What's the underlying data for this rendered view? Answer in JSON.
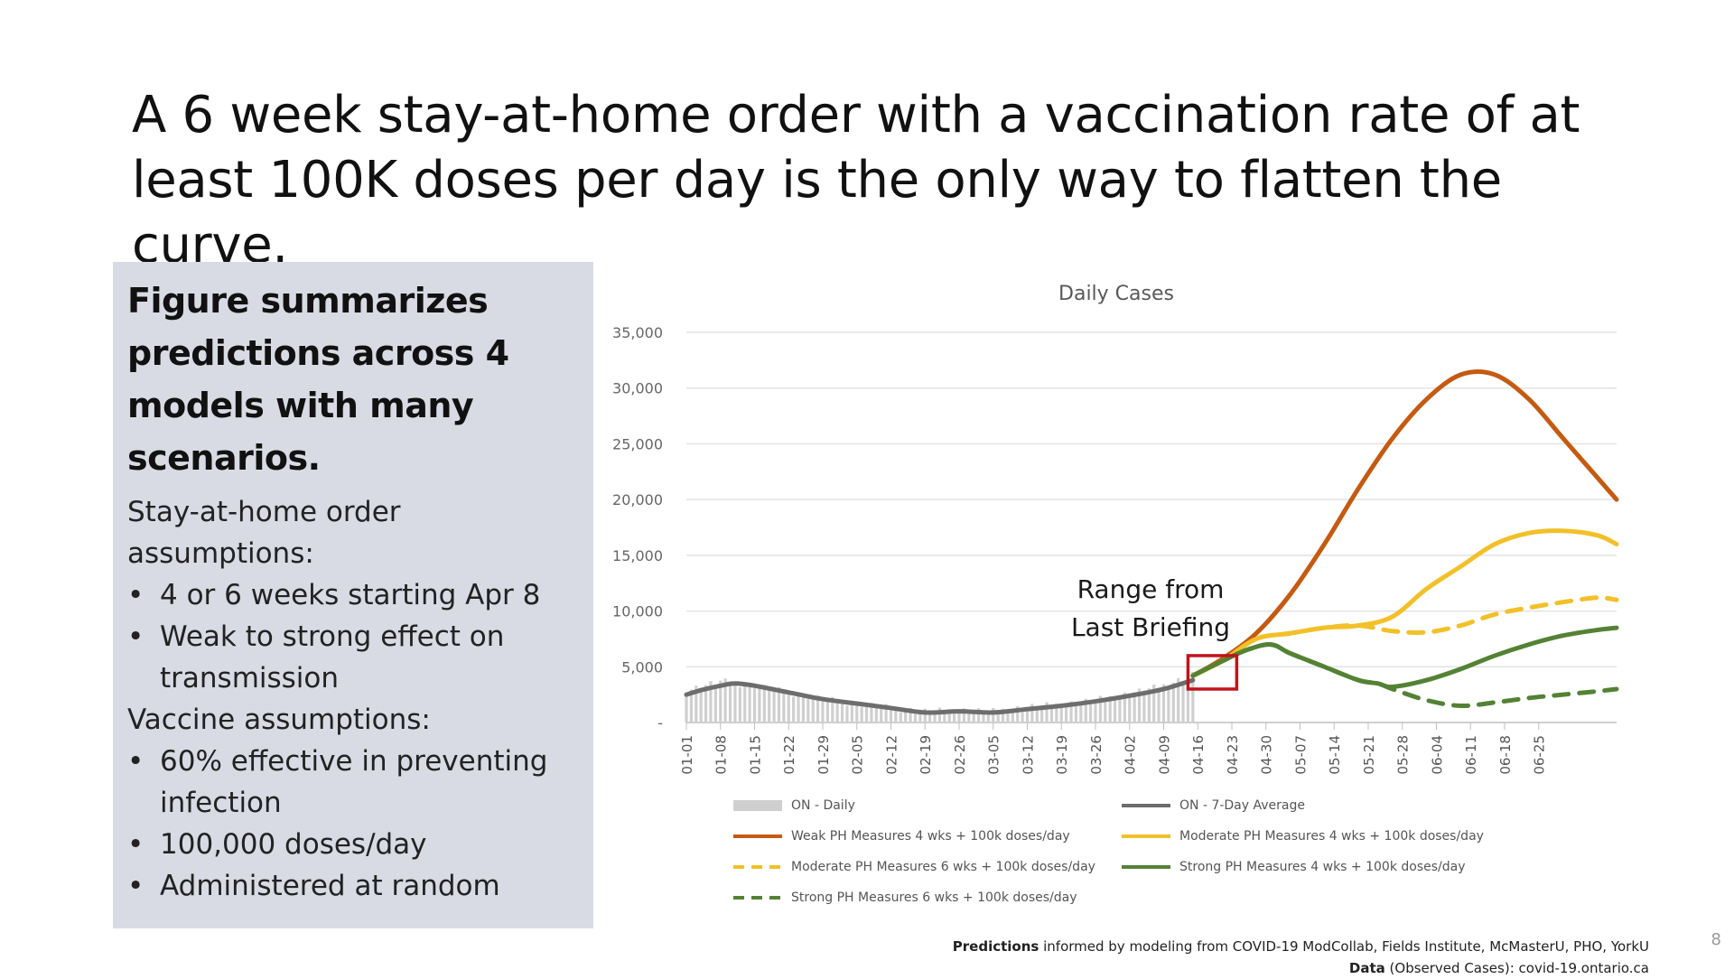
{
  "slide": {
    "headline_line1": "A 6 week stay-at-home order with a vaccination rate of at",
    "headline_line2": "least 100K doses per day is the only way to flatten the curve.",
    "page_number": "8"
  },
  "panel": {
    "title_lines": [
      "Figure summarizes",
      "predictions across 4",
      "models with many",
      "scenarios."
    ],
    "stay_heading_1": "Stay-at-home order",
    "stay_heading_2": "assumptions:",
    "stay_bullets": [
      [
        "4 or 6 weeks starting Apr 8"
      ],
      [
        "Weak to strong effect on",
        "transmission"
      ]
    ],
    "vaccine_heading": "Vaccine assumptions:",
    "vaccine_bullets": [
      [
        "60% effective in preventing",
        "infection"
      ],
      [
        "100,000 doses/day"
      ],
      [
        "Administered at random"
      ]
    ],
    "bullet_char": "•"
  },
  "footer": {
    "predictions_bold": "Predictions",
    "predictions_rest": " informed by modeling from COVID-19 ModCollab, Fields Institute, McMasterU, PHO, YorkU",
    "data_bold": "Data",
    "data_rest": " (Observed Cases): covid-19.ontario.ca"
  },
  "chart_data": {
    "type": "line",
    "title": "Daily Cases",
    "xlabel": "",
    "ylabel": "",
    "ylim": [
      0,
      35000
    ],
    "y_ticks": [
      "-",
      "5,000",
      "10,000",
      "15,000",
      "20,000",
      "25,000",
      "30,000",
      "35,000"
    ],
    "x_tick_labels": [
      "01-01",
      "01-08",
      "01-15",
      "01-22",
      "01-29",
      "02-05",
      "02-12",
      "02-19",
      "02-26",
      "03-05",
      "03-12",
      "03-19",
      "03-26",
      "04-02",
      "04-09",
      "04-16",
      "04-23",
      "04-30",
      "05-07",
      "05-14",
      "05-21",
      "05-28",
      "06-04",
      "06-11",
      "06-18",
      "06-25"
    ],
    "grid": true,
    "annotation": {
      "text_line1": "Range from",
      "text_line2": "Last Briefing",
      "box_day_start": 103,
      "box_day_end": 113,
      "box_y_low": 3000,
      "box_y_high": 6000,
      "box_color": "#c0141c"
    },
    "daily_bars": {
      "name": "ON - Daily",
      "color": "#cfcfcf",
      "x_day": [
        0,
        7,
        14,
        21,
        28,
        35,
        42,
        49,
        56,
        63,
        70,
        77,
        84,
        91,
        98,
        104
      ],
      "values": [
        2900,
        3700,
        3300,
        2700,
        2100,
        1700,
        1300,
        1000,
        1100,
        1000,
        1400,
        1600,
        2000,
        2600,
        3300,
        4300
      ]
    },
    "series": [
      {
        "name": "ON - 7-Day Average",
        "color": "#6d6d6d",
        "dashed": false,
        "x_day": [
          0,
          3,
          7,
          10,
          14,
          21,
          28,
          35,
          42,
          49,
          56,
          63,
          70,
          77,
          84,
          91,
          98,
          104
        ],
        "values": [
          2500,
          2900,
          3300,
          3500,
          3300,
          2700,
          2100,
          1700,
          1300,
          900,
          1000,
          900,
          1200,
          1500,
          1900,
          2400,
          3000,
          3800
        ]
      },
      {
        "name": "Weak PH Measures 4 wks + 100k doses/day",
        "color": "#c55a11",
        "dashed": false,
        "x_day": [
          104,
          110,
          117,
          124,
          131,
          138,
          145,
          152,
          159,
          166,
          173,
          180,
          187,
          191
        ],
        "values": [
          4200,
          5700,
          8000,
          11500,
          16000,
          21000,
          25500,
          29000,
          31200,
          31200,
          29000,
          25500,
          22000,
          20000
        ]
      },
      {
        "name": "Moderate PH Measures 4 wks + 100k doses/day",
        "color": "#f2c028",
        "dashed": false,
        "x_day": [
          104,
          110,
          117,
          124,
          131,
          138,
          145,
          152,
          159,
          166,
          173,
          180,
          187,
          191
        ],
        "values": [
          4200,
          5500,
          7500,
          8000,
          8500,
          8700,
          9500,
          12000,
          14000,
          16000,
          17000,
          17200,
          16800,
          16000
        ]
      },
      {
        "name": "Moderate PH Measures 6 wks + 100k doses/day",
        "color": "#f2c028",
        "dashed": true,
        "x_day": [
          104,
          110,
          117,
          124,
          131,
          138,
          145,
          152,
          159,
          166,
          173,
          180,
          187,
          191
        ],
        "values": [
          4200,
          5500,
          7500,
          8000,
          8500,
          8700,
          8200,
          8100,
          8700,
          9700,
          10300,
          10800,
          11200,
          11000
        ]
      },
      {
        "name": "Strong PH Measures 4 wks + 100k doses/day",
        "color": "#548235",
        "dashed": false,
        "x_day": [
          104,
          110,
          115,
          120,
          124,
          131,
          138,
          142,
          145,
          152,
          159,
          166,
          173,
          180,
          187,
          191
        ],
        "values": [
          4200,
          5500,
          6500,
          7000,
          6200,
          5000,
          3800,
          3500,
          3200,
          3800,
          4800,
          6000,
          7000,
          7800,
          8300,
          8500
        ]
      },
      {
        "name": "Strong PH Measures 6 wks + 100k doses/day",
        "color": "#548235",
        "dashed": true,
        "x_day": [
          104,
          110,
          115,
          120,
          124,
          131,
          138,
          142,
          145,
          152,
          159,
          166,
          173,
          180,
          187,
          191
        ],
        "values": [
          4200,
          5500,
          6500,
          7000,
          6200,
          5000,
          3800,
          3500,
          3000,
          2000,
          1500,
          1800,
          2200,
          2500,
          2800,
          3000
        ]
      }
    ]
  }
}
